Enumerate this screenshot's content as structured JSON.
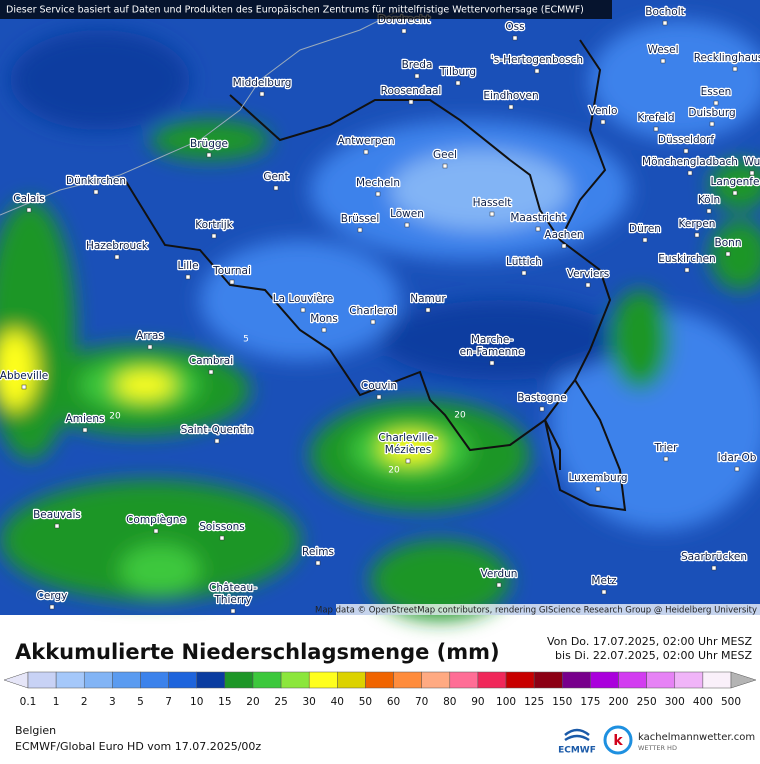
{
  "header": "Dieser Service basiert auf Daten und Produkten des Europäischen Zentrums für mittelfristige Wettervorhersage (ECMWF)",
  "map": {
    "cities": [
      [
        "Dordrecht"
      ],
      [
        "Oss"
      ],
      [
        "Bocholt"
      ],
      [
        "Breda"
      ],
      [
        "Tilburg"
      ],
      [
        "'s-Hertogenbosch"
      ],
      [
        "Wesel"
      ],
      [
        "Recklinghausen"
      ],
      [
        "Middelburg"
      ],
      [
        "Roosendaal"
      ],
      [
        "Eindhoven"
      ],
      [
        "Venlo"
      ],
      [
        "Essen"
      ],
      [
        "Duisburg"
      ],
      [
        "Krefeld"
      ],
      [
        "Brügge"
      ],
      [
        "Antwerpen"
      ],
      [
        "Geel"
      ],
      [
        "Düsseldorf"
      ],
      [
        "Mönchengladbach"
      ],
      [
        "Wu"
      ],
      [
        "Dünkirchen"
      ],
      [
        "Gent"
      ],
      [
        "Mecheln"
      ],
      [
        "Langenfe"
      ],
      [
        "Calais"
      ],
      [
        "Hasselt"
      ],
      [
        "Maastricht"
      ],
      [
        "Köln"
      ],
      [
        "Kortrijk"
      ],
      [
        "Brüssel"
      ],
      [
        "Löwen"
      ],
      [
        "Düren"
      ],
      [
        "Kerpen"
      ],
      [
        "Aachen"
      ],
      [
        "Hazebrouck"
      ],
      [
        "Bonn"
      ],
      [
        "Lille"
      ],
      [
        "Tournai"
      ],
      [
        "Lüttich"
      ],
      [
        "Verviers"
      ],
      [
        "Euskirchen"
      ],
      [
        "La Louvière"
      ],
      [
        "Namur"
      ],
      [
        "Charleroi"
      ],
      [
        "Mons"
      ],
      [
        "Arras"
      ],
      [
        "Marche-",
        "en-Famenne"
      ],
      [
        "Cambrai"
      ],
      [
        "Abbeville"
      ],
      [
        "Couvin"
      ],
      [
        "Bastogne"
      ],
      [
        "Amiens"
      ],
      [
        "Saint-Quentin"
      ],
      [
        "Charleville-",
        "Mézières"
      ],
      [
        "Trier"
      ],
      [
        "Idar-Ob"
      ],
      [
        "Luxemburg"
      ],
      [
        "Beauvais"
      ],
      [
        "Compiègne"
      ],
      [
        "Soissons"
      ],
      [
        "Reims"
      ],
      [
        "Saarbrücken"
      ],
      [
        "Verdun"
      ],
      [
        "Metz"
      ],
      [
        "Château-",
        "Thierry"
      ],
      [
        "Cergy"
      ]
    ],
    "contour_labels": [
      "5",
      "20",
      "20",
      "20"
    ],
    "attribution": "Map data © OpenStreetMap contributors, rendering GIScience Research Group @ Heidelberg University"
  },
  "legend": {
    "title": "Akkumulierte Niederschlagsmenge (mm)",
    "period": [
      "Von Do. 17.07.2025, 02:00 Uhr MESZ",
      "bis Di. 22.07.2025, 02:00 Uhr MESZ"
    ],
    "ticks": [
      0.1,
      1,
      2,
      3,
      5,
      7,
      10,
      15,
      20,
      25,
      30,
      40,
      50,
      60,
      70,
      80,
      90,
      100,
      125,
      150,
      175,
      200,
      250,
      300,
      400,
      500
    ],
    "colors": [
      "#e6e6f8",
      "#c8d2f5",
      "#a5c8fa",
      "#82b4f5",
      "#5a9bf0",
      "#3c82eb",
      "#1e64dc",
      "#0a3ca0",
      "#1e9628",
      "#3cc83c",
      "#8ce63c",
      "#ffff1e",
      "#dcd200",
      "#f06400",
      "#ff8c3c",
      "#ffaa82",
      "#ff6e96",
      "#f0285a",
      "#c80000",
      "#8c0014",
      "#78008c",
      "#aa00dc",
      "#d23cf0",
      "#e682f5",
      "#f0b4f8",
      "#faf0fa",
      "#b4b4b4"
    ]
  },
  "footer": {
    "region": "Belgien",
    "model": "ECMWF/Global Euro HD vom  17.07.2025/00z",
    "logos": [
      "ECMWF",
      "kachelmannwetter.com",
      "WETTER HD"
    ]
  }
}
